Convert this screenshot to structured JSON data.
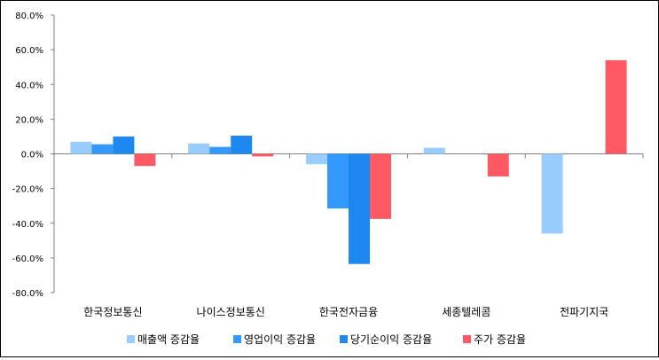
{
  "chart_data": {
    "type": "bar",
    "categories": [
      "한국정보통신",
      "나이스정보통신",
      "한국전자금융",
      "세종텔레콤",
      "전파기지국"
    ],
    "series": [
      {
        "name": "매출액 증감율",
        "color": "#99CCFF",
        "values": [
          7.0,
          6.0,
          -6.0,
          3.5,
          -46.0
        ]
      },
      {
        "name": "영업이익 증감율",
        "color": "#3399FF",
        "values": [
          5.5,
          4.0,
          -31.5,
          null,
          null
        ]
      },
      {
        "name": "당기순이익 증감율",
        "color": "#1E88F0",
        "values": [
          10.0,
          10.5,
          -63.5,
          null,
          null
        ]
      },
      {
        "name": "주가 증감율",
        "color": "#FF5A64",
        "values": [
          -7.0,
          -1.5,
          -37.5,
          -13.0,
          54.0
        ]
      }
    ],
    "ylim": [
      -80,
      80
    ],
    "yticks": [
      80,
      60,
      40,
      20,
      0,
      -20,
      -40,
      -60,
      -80
    ],
    "ytick_labels": [
      "80.0%",
      "60.0%",
      "40.0%",
      "20.0%",
      "0.0%",
      "-20.0%",
      "-40.0%",
      "-60.0%",
      "-80.0%"
    ],
    "legend_position": "bottom",
    "grid": false
  }
}
